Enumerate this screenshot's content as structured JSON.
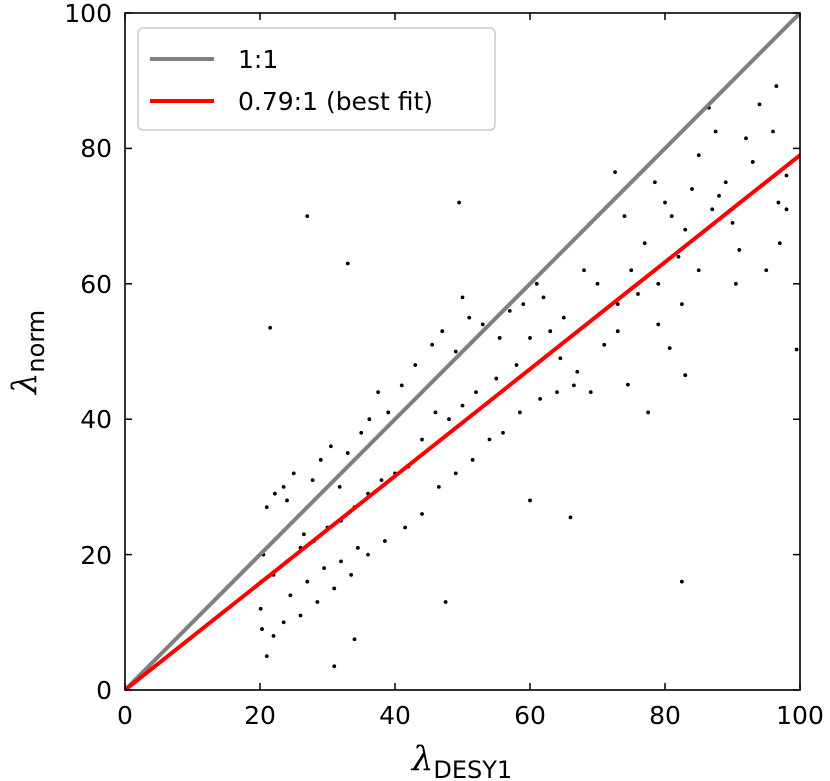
{
  "chart_data": {
    "type": "scatter",
    "xlabel": {
      "symbol": "λ",
      "subscript": "DESY1"
    },
    "ylabel": {
      "symbol": "λ",
      "subscript": "norm"
    },
    "xlim": [
      0,
      100
    ],
    "ylim": [
      0,
      100
    ],
    "xticks": [
      "0",
      "20",
      "40",
      "60",
      "80",
      "100"
    ],
    "yticks": [
      "0",
      "20",
      "40",
      "60",
      "80",
      "100"
    ],
    "grid": false,
    "legend_position": "top-left",
    "lines": [
      {
        "name": "1:1",
        "slope": 1.0,
        "color": "#808080"
      },
      {
        "name": "0.79:1 (best fit)",
        "slope": 0.79,
        "color": "#ff0000"
      }
    ],
    "scatter": {
      "color": "#000000",
      "points": [
        [
          21.5,
          53.5
        ],
        [
          27,
          70
        ],
        [
          33,
          63
        ],
        [
          49.5,
          72
        ],
        [
          50,
          58
        ],
        [
          72.6,
          76.5
        ],
        [
          86.5,
          86
        ],
        [
          96.5,
          89.2
        ],
        [
          99.5,
          50.3
        ],
        [
          82.5,
          16
        ],
        [
          83,
          46.5
        ],
        [
          77.5,
          41
        ],
        [
          74.5,
          45.1
        ],
        [
          47.5,
          13
        ],
        [
          31,
          3.5
        ],
        [
          21,
          5
        ],
        [
          34,
          7.5
        ],
        [
          66,
          25.5
        ],
        [
          60,
          28
        ],
        [
          96,
          82.5
        ],
        [
          92,
          81.5
        ],
        [
          94,
          86.5
        ],
        [
          87.5,
          82.5
        ],
        [
          85,
          79
        ],
        [
          80,
          72
        ],
        [
          78.5,
          75
        ],
        [
          74,
          70
        ],
        [
          98,
          71
        ],
        [
          97,
          66
        ],
        [
          96.8,
          72
        ],
        [
          90,
          69
        ],
        [
          88,
          73
        ],
        [
          84,
          74
        ],
        [
          82,
          64
        ],
        [
          82.5,
          57
        ],
        [
          79,
          54
        ],
        [
          76,
          58.5
        ],
        [
          90.5,
          60
        ],
        [
          80.7,
          50.5
        ],
        [
          73,
          53
        ],
        [
          70,
          60
        ],
        [
          68,
          62
        ],
        [
          65,
          55
        ],
        [
          62,
          58
        ],
        [
          60,
          52
        ],
        [
          58,
          48
        ],
        [
          55,
          46
        ],
        [
          52,
          44
        ],
        [
          50,
          42
        ],
        [
          48,
          40
        ],
        [
          46,
          41
        ],
        [
          44,
          37
        ],
        [
          42,
          33
        ],
        [
          40,
          32
        ],
        [
          38,
          31
        ],
        [
          36,
          29
        ],
        [
          34,
          27
        ],
        [
          32,
          25
        ],
        [
          30,
          24
        ],
        [
          28,
          22
        ],
        [
          26,
          21
        ],
        [
          24,
          19
        ],
        [
          22,
          17
        ],
        [
          20.2,
          16
        ],
        [
          20.5,
          20
        ],
        [
          20.1,
          12
        ],
        [
          20.3,
          9
        ],
        [
          21,
          27
        ],
        [
          22.2,
          29
        ],
        [
          23.5,
          30
        ],
        [
          24,
          28
        ],
        [
          25,
          32
        ],
        [
          26.5,
          23
        ],
        [
          27.8,
          31
        ],
        [
          29,
          34
        ],
        [
          30.5,
          36
        ],
        [
          31.8,
          30
        ],
        [
          33,
          35
        ],
        [
          35,
          38
        ],
        [
          36.2,
          40
        ],
        [
          37.5,
          44
        ],
        [
          39,
          41
        ],
        [
          41,
          45
        ],
        [
          43,
          48
        ],
        [
          45.5,
          51
        ],
        [
          47,
          53
        ],
        [
          49,
          50
        ],
        [
          51,
          55
        ],
        [
          53,
          54
        ],
        [
          55.5,
          52
        ],
        [
          57,
          56
        ],
        [
          59,
          57
        ],
        [
          61,
          60
        ],
        [
          63,
          53
        ],
        [
          64.5,
          49
        ],
        [
          67,
          47
        ],
        [
          69,
          44
        ],
        [
          71,
          51
        ],
        [
          73,
          57
        ],
        [
          75,
          62
        ],
        [
          77,
          66
        ],
        [
          79,
          60
        ],
        [
          81,
          70
        ],
        [
          83,
          68
        ],
        [
          85,
          62
        ],
        [
          87,
          71
        ],
        [
          89,
          75
        ],
        [
          91,
          65
        ],
        [
          93,
          78
        ],
        [
          95,
          62
        ],
        [
          98,
          76
        ],
        [
          41.5,
          24
        ],
        [
          44,
          26
        ],
        [
          46.5,
          30
        ],
        [
          49,
          32
        ],
        [
          51.5,
          34
        ],
        [
          54,
          37
        ],
        [
          56,
          38
        ],
        [
          58.5,
          41
        ],
        [
          61.5,
          43
        ],
        [
          64,
          44
        ],
        [
          66.5,
          45
        ],
        [
          38.5,
          22
        ],
        [
          36,
          20
        ],
        [
          33.5,
          17
        ],
        [
          31,
          15
        ],
        [
          28.5,
          13
        ],
        [
          26,
          11
        ],
        [
          23.5,
          10
        ],
        [
          22,
          8
        ],
        [
          24.5,
          14
        ],
        [
          27,
          16
        ],
        [
          29.5,
          18
        ],
        [
          32,
          19
        ],
        [
          34.5,
          21
        ]
      ]
    }
  }
}
